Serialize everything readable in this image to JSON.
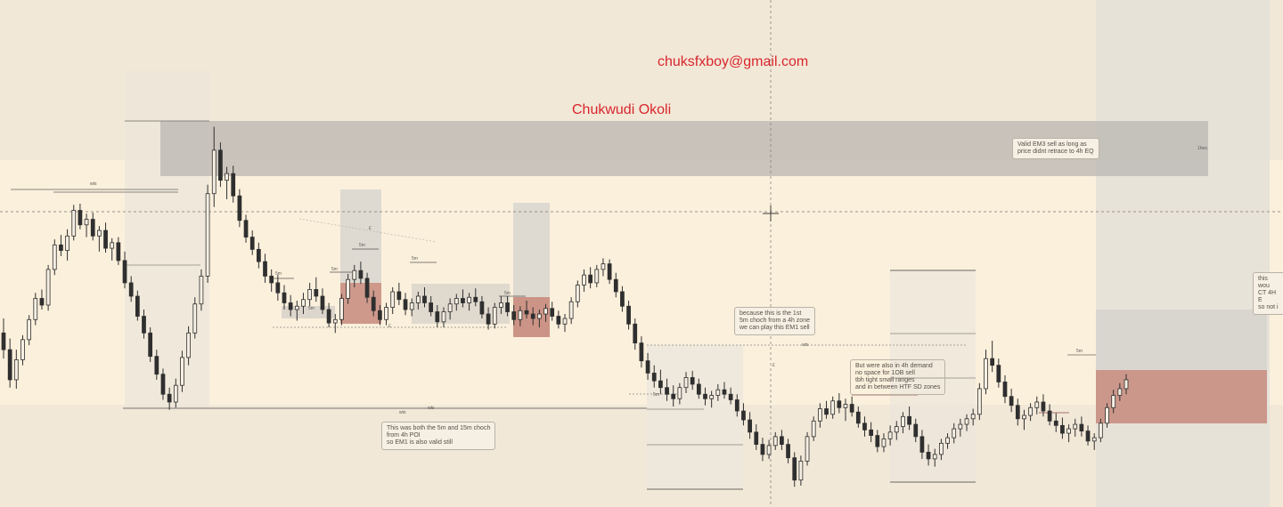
{
  "watermark": {
    "email": "chuksfxboy@gmail.com",
    "name": "Chukwudi Okoli"
  },
  "notes": {
    "valid_em3": "Valid EM3 sell as long as\nprice didnt retrace to 4h EQ",
    "both_choch": "This was both the 5m and 15m choch\nfrom 4h POI\nso EM1 is also valid still",
    "first_choch": "because this is the 1st\n5m choch from a 4h zone\nwe can play this EM1 sell",
    "demand": "But were also in 4h demand\nno space for 1OB sell\ntbh tight small ranges\nand in between HTF SD zones",
    "right_cut": "this wou\nCT 4H E\nso not i"
  },
  "labels": {
    "wts_left": "wts",
    "wts_bottom": "wts",
    "wts_mid": "wts",
    "wts_right": "wts",
    "e_top": "£",
    "e_bottom": "£",
    "e_mid": "£",
    "m5_a": "5m",
    "m5_b": "5m",
    "m5_c": "5m",
    "m5_d": "5m",
    "m5_e": "5m",
    "m5_f": "5m",
    "m5_g": "5m",
    "m5_h": "5m",
    "m5_i": "5m",
    "m5_j": "5m",
    "m5_k": "5m",
    "m5_l": "5m",
    "box_tag": "1hes"
  },
  "colors": {
    "background": "#f3eadb",
    "candle": "#2f2f2f",
    "supply_zone": "#b9b6b1",
    "demand_zone": "#c68a7c",
    "accent_text": "#d8262c"
  },
  "chart_data": {
    "type": "candlestick",
    "title": "",
    "note": "price axis not shown; values are relative price levels",
    "series": [
      {
        "open": 345,
        "high": 358,
        "low": 322,
        "close": 330
      },
      {
        "open": 330,
        "high": 340,
        "low": 296,
        "close": 303
      },
      {
        "open": 303,
        "high": 330,
        "low": 295,
        "close": 321
      },
      {
        "open": 321,
        "high": 343,
        "low": 316,
        "close": 339
      },
      {
        "open": 339,
        "high": 361,
        "low": 334,
        "close": 357
      },
      {
        "open": 357,
        "high": 381,
        "low": 352,
        "close": 376
      },
      {
        "open": 376,
        "high": 384,
        "low": 366,
        "close": 370
      },
      {
        "open": 370,
        "high": 406,
        "low": 365,
        "close": 402
      },
      {
        "open": 402,
        "high": 429,
        "low": 397,
        "close": 424
      },
      {
        "open": 424,
        "high": 433,
        "low": 414,
        "close": 419
      },
      {
        "open": 419,
        "high": 438,
        "low": 410,
        "close": 432
      },
      {
        "open": 432,
        "high": 460,
        "low": 428,
        "close": 455
      },
      {
        "open": 455,
        "high": 461,
        "low": 438,
        "close": 442
      },
      {
        "open": 442,
        "high": 452,
        "low": 431,
        "close": 447
      },
      {
        "open": 447,
        "high": 453,
        "low": 428,
        "close": 432
      },
      {
        "open": 432,
        "high": 441,
        "low": 418,
        "close": 437
      },
      {
        "open": 437,
        "high": 444,
        "low": 417,
        "close": 421
      },
      {
        "open": 421,
        "high": 430,
        "low": 410,
        "close": 426
      },
      {
        "open": 426,
        "high": 431,
        "low": 406,
        "close": 410
      },
      {
        "open": 410,
        "high": 418,
        "low": 385,
        "close": 390
      },
      {
        "open": 390,
        "high": 396,
        "low": 373,
        "close": 378
      },
      {
        "open": 378,
        "high": 383,
        "low": 356,
        "close": 360
      },
      {
        "open": 360,
        "high": 366,
        "low": 340,
        "close": 345
      },
      {
        "open": 345,
        "high": 350,
        "low": 319,
        "close": 324
      },
      {
        "open": 324,
        "high": 330,
        "low": 303,
        "close": 308
      },
      {
        "open": 308,
        "high": 313,
        "low": 285,
        "close": 290
      },
      {
        "open": 290,
        "high": 296,
        "low": 276,
        "close": 283
      },
      {
        "open": 283,
        "high": 304,
        "low": 278,
        "close": 298
      },
      {
        "open": 298,
        "high": 329,
        "low": 292,
        "close": 323
      },
      {
        "open": 323,
        "high": 351,
        "low": 316,
        "close": 345
      },
      {
        "open": 345,
        "high": 377,
        "low": 340,
        "close": 371
      },
      {
        "open": 371,
        "high": 402,
        "low": 365,
        "close": 396
      },
      {
        "open": 396,
        "high": 478,
        "low": 390,
        "close": 470
      },
      {
        "open": 470,
        "high": 530,
        "low": 458,
        "close": 509
      },
      {
        "open": 509,
        "high": 516,
        "low": 476,
        "close": 482
      },
      {
        "open": 482,
        "high": 494,
        "low": 465,
        "close": 488
      },
      {
        "open": 488,
        "high": 495,
        "low": 462,
        "close": 468
      },
      {
        "open": 468,
        "high": 474,
        "low": 440,
        "close": 446
      },
      {
        "open": 446,
        "high": 451,
        "low": 426,
        "close": 431
      },
      {
        "open": 431,
        "high": 437,
        "low": 415,
        "close": 420
      },
      {
        "open": 420,
        "high": 426,
        "low": 403,
        "close": 409
      },
      {
        "open": 409,
        "high": 416,
        "low": 390,
        "close": 396
      },
      {
        "open": 396,
        "high": 402,
        "low": 382,
        "close": 390
      },
      {
        "open": 390,
        "high": 397,
        "low": 374,
        "close": 381
      },
      {
        "open": 381,
        "high": 388,
        "low": 366,
        "close": 372
      },
      {
        "open": 372,
        "high": 379,
        "low": 360,
        "close": 366
      },
      {
        "open": 366,
        "high": 374,
        "low": 356,
        "close": 369
      },
      {
        "open": 369,
        "high": 381,
        "low": 362,
        "close": 375
      },
      {
        "open": 375,
        "high": 390,
        "low": 369,
        "close": 384
      },
      {
        "open": 384,
        "high": 395,
        "low": 373,
        "close": 378
      },
      {
        "open": 378,
        "high": 385,
        "low": 362,
        "close": 366
      },
      {
        "open": 366,
        "high": 372,
        "low": 350,
        "close": 354
      },
      {
        "open": 354,
        "high": 362,
        "low": 345,
        "close": 357
      },
      {
        "open": 357,
        "high": 380,
        "low": 352,
        "close": 376
      },
      {
        "open": 376,
        "high": 398,
        "low": 371,
        "close": 393
      },
      {
        "open": 393,
        "high": 406,
        "low": 386,
        "close": 401
      },
      {
        "open": 401,
        "high": 409,
        "low": 389,
        "close": 394
      },
      {
        "open": 394,
        "high": 399,
        "low": 372,
        "close": 377
      },
      {
        "open": 377,
        "high": 383,
        "low": 360,
        "close": 365
      },
      {
        "open": 365,
        "high": 370,
        "low": 352,
        "close": 357
      },
      {
        "open": 357,
        "high": 372,
        "low": 352,
        "close": 368
      },
      {
        "open": 368,
        "high": 386,
        "low": 362,
        "close": 382
      },
      {
        "open": 382,
        "high": 390,
        "low": 370,
        "close": 375
      },
      {
        "open": 375,
        "high": 381,
        "low": 361,
        "close": 366
      },
      {
        "open": 366,
        "high": 376,
        "low": 360,
        "close": 372
      },
      {
        "open": 372,
        "high": 382,
        "low": 366,
        "close": 378
      },
      {
        "open": 378,
        "high": 386,
        "low": 368,
        "close": 372
      },
      {
        "open": 372,
        "high": 378,
        "low": 360,
        "close": 364
      },
      {
        "open": 364,
        "high": 370,
        "low": 350,
        "close": 355
      },
      {
        "open": 355,
        "high": 368,
        "low": 350,
        "close": 364
      },
      {
        "open": 364,
        "high": 376,
        "low": 357,
        "close": 371
      },
      {
        "open": 371,
        "high": 380,
        "low": 365,
        "close": 376
      },
      {
        "open": 376,
        "high": 384,
        "low": 368,
        "close": 372
      },
      {
        "open": 372,
        "high": 381,
        "low": 365,
        "close": 377
      },
      {
        "open": 377,
        "high": 385,
        "low": 369,
        "close": 373
      },
      {
        "open": 373,
        "high": 378,
        "low": 358,
        "close": 362
      },
      {
        "open": 362,
        "high": 368,
        "low": 348,
        "close": 353
      },
      {
        "open": 353,
        "high": 372,
        "low": 349,
        "close": 368
      },
      {
        "open": 368,
        "high": 378,
        "low": 362,
        "close": 372
      },
      {
        "open": 372,
        "high": 378,
        "low": 360,
        "close": 364
      },
      {
        "open": 364,
        "high": 370,
        "low": 352,
        "close": 357
      },
      {
        "open": 357,
        "high": 369,
        "low": 351,
        "close": 365
      },
      {
        "open": 365,
        "high": 374,
        "low": 358,
        "close": 362
      },
      {
        "open": 362,
        "high": 368,
        "low": 352,
        "close": 358
      },
      {
        "open": 358,
        "high": 366,
        "low": 350,
        "close": 362
      },
      {
        "open": 362,
        "high": 371,
        "low": 355,
        "close": 367
      },
      {
        "open": 367,
        "high": 373,
        "low": 356,
        "close": 360
      },
      {
        "open": 360,
        "high": 365,
        "low": 349,
        "close": 353
      },
      {
        "open": 353,
        "high": 362,
        "low": 346,
        "close": 358
      },
      {
        "open": 358,
        "high": 377,
        "low": 353,
        "close": 373
      },
      {
        "open": 373,
        "high": 392,
        "low": 368,
        "close": 388
      },
      {
        "open": 388,
        "high": 402,
        "low": 382,
        "close": 397
      },
      {
        "open": 397,
        "high": 404,
        "low": 385,
        "close": 390
      },
      {
        "open": 390,
        "high": 406,
        "low": 386,
        "close": 402
      },
      {
        "open": 402,
        "high": 412,
        "low": 396,
        "close": 407
      },
      {
        "open": 407,
        "high": 411,
        "low": 389,
        "close": 393
      },
      {
        "open": 393,
        "high": 399,
        "low": 377,
        "close": 382
      },
      {
        "open": 382,
        "high": 387,
        "low": 364,
        "close": 369
      },
      {
        "open": 369,
        "high": 374,
        "low": 348,
        "close": 353
      },
      {
        "open": 353,
        "high": 358,
        "low": 330,
        "close": 336
      },
      {
        "open": 336,
        "high": 342,
        "low": 314,
        "close": 320
      },
      {
        "open": 320,
        "high": 327,
        "low": 303,
        "close": 309
      },
      {
        "open": 309,
        "high": 316,
        "low": 296,
        "close": 302
      },
      {
        "open": 302,
        "high": 312,
        "low": 290,
        "close": 296
      },
      {
        "open": 296,
        "high": 304,
        "low": 284,
        "close": 290
      },
      {
        "open": 290,
        "high": 298,
        "low": 279,
        "close": 286
      },
      {
        "open": 286,
        "high": 300,
        "low": 281,
        "close": 296
      },
      {
        "open": 296,
        "high": 310,
        "low": 291,
        "close": 305
      },
      {
        "open": 305,
        "high": 311,
        "low": 294,
        "close": 299
      },
      {
        "open": 299,
        "high": 304,
        "low": 286,
        "close": 290
      },
      {
        "open": 290,
        "high": 296,
        "low": 280,
        "close": 286
      },
      {
        "open": 286,
        "high": 293,
        "low": 278,
        "close": 289
      },
      {
        "open": 289,
        "high": 299,
        "low": 284,
        "close": 294
      },
      {
        "open": 294,
        "high": 301,
        "low": 286,
        "close": 290
      },
      {
        "open": 290,
        "high": 296,
        "low": 281,
        "close": 285
      },
      {
        "open": 285,
        "high": 290,
        "low": 270,
        "close": 275
      },
      {
        "open": 275,
        "high": 282,
        "low": 262,
        "close": 267
      },
      {
        "open": 267,
        "high": 274,
        "low": 250,
        "close": 256
      },
      {
        "open": 256,
        "high": 263,
        "low": 240,
        "close": 245
      },
      {
        "open": 245,
        "high": 251,
        "low": 230,
        "close": 236
      },
      {
        "open": 236,
        "high": 249,
        "low": 232,
        "close": 244
      },
      {
        "open": 244,
        "high": 256,
        "low": 240,
        "close": 252
      },
      {
        "open": 252,
        "high": 258,
        "low": 240,
        "close": 245
      },
      {
        "open": 245,
        "high": 250,
        "low": 228,
        "close": 233
      },
      {
        "open": 233,
        "high": 238,
        "low": 207,
        "close": 213
      },
      {
        "open": 213,
        "high": 235,
        "low": 208,
        "close": 230
      },
      {
        "open": 230,
        "high": 256,
        "low": 226,
        "close": 252
      },
      {
        "open": 252,
        "high": 270,
        "low": 248,
        "close": 266
      },
      {
        "open": 266,
        "high": 282,
        "low": 260,
        "close": 277
      },
      {
        "open": 277,
        "high": 284,
        "low": 268,
        "close": 272
      },
      {
        "open": 272,
        "high": 288,
        "low": 268,
        "close": 284
      },
      {
        "open": 284,
        "high": 291,
        "low": 273,
        "close": 278
      },
      {
        "open": 278,
        "high": 286,
        "low": 266,
        "close": 281
      },
      {
        "open": 281,
        "high": 288,
        "low": 270,
        "close": 274
      },
      {
        "open": 274,
        "high": 279,
        "low": 260,
        "close": 264
      },
      {
        "open": 264,
        "high": 270,
        "low": 252,
        "close": 258
      },
      {
        "open": 258,
        "high": 265,
        "low": 247,
        "close": 253
      },
      {
        "open": 253,
        "high": 258,
        "low": 238,
        "close": 243
      },
      {
        "open": 243,
        "high": 255,
        "low": 238,
        "close": 250
      },
      {
        "open": 250,
        "high": 262,
        "low": 244,
        "close": 256
      },
      {
        "open": 256,
        "high": 266,
        "low": 249,
        "close": 261
      },
      {
        "open": 261,
        "high": 274,
        "low": 255,
        "close": 270
      },
      {
        "open": 270,
        "high": 279,
        "low": 258,
        "close": 263
      },
      {
        "open": 263,
        "high": 268,
        "low": 247,
        "close": 252
      },
      {
        "open": 252,
        "high": 258,
        "low": 232,
        "close": 238
      },
      {
        "open": 238,
        "high": 245,
        "low": 226,
        "close": 232
      },
      {
        "open": 232,
        "high": 241,
        "low": 225,
        "close": 236
      },
      {
        "open": 236,
        "high": 250,
        "low": 231,
        "close": 246
      },
      {
        "open": 246,
        "high": 255,
        "low": 241,
        "close": 251
      },
      {
        "open": 251,
        "high": 264,
        "low": 246,
        "close": 259
      },
      {
        "open": 259,
        "high": 268,
        "low": 252,
        "close": 263
      },
      {
        "open": 263,
        "high": 272,
        "low": 257,
        "close": 268
      },
      {
        "open": 268,
        "high": 277,
        "low": 262,
        "close": 272
      },
      {
        "open": 272,
        "high": 300,
        "low": 267,
        "close": 295
      },
      {
        "open": 295,
        "high": 330,
        "low": 290,
        "close": 322
      },
      {
        "open": 322,
        "high": 338,
        "low": 310,
        "close": 316
      },
      {
        "open": 316,
        "high": 322,
        "low": 296,
        "close": 301
      },
      {
        "open": 301,
        "high": 307,
        "low": 282,
        "close": 288
      },
      {
        "open": 288,
        "high": 295,
        "low": 274,
        "close": 280
      },
      {
        "open": 280,
        "high": 286,
        "low": 262,
        "close": 268
      },
      {
        "open": 268,
        "high": 276,
        "low": 258,
        "close": 271
      },
      {
        "open": 271,
        "high": 282,
        "low": 266,
        "close": 278
      },
      {
        "open": 278,
        "high": 288,
        "low": 272,
        "close": 283
      },
      {
        "open": 283,
        "high": 290,
        "low": 270,
        "close": 275
      },
      {
        "open": 275,
        "high": 281,
        "low": 262,
        "close": 266
      },
      {
        "open": 266,
        "high": 273,
        "low": 256,
        "close": 262
      },
      {
        "open": 262,
        "high": 269,
        "low": 250,
        "close": 255
      },
      {
        "open": 255,
        "high": 263,
        "low": 247,
        "close": 259
      },
      {
        "open": 259,
        "high": 268,
        "low": 252,
        "close": 263
      },
      {
        "open": 263,
        "high": 270,
        "low": 252,
        "close": 257
      },
      {
        "open": 257,
        "high": 262,
        "low": 244,
        "close": 248
      },
      {
        "open": 248,
        "high": 255,
        "low": 240,
        "close": 251
      },
      {
        "open": 251,
        "high": 268,
        "low": 247,
        "close": 264
      },
      {
        "open": 264,
        "high": 282,
        "low": 260,
        "close": 278
      },
      {
        "open": 278,
        "high": 294,
        "low": 273,
        "close": 289
      },
      {
        "open": 289,
        "high": 300,
        "low": 284,
        "close": 295
      },
      {
        "open": 295,
        "high": 308,
        "low": 290,
        "close": 303
      }
    ]
  }
}
